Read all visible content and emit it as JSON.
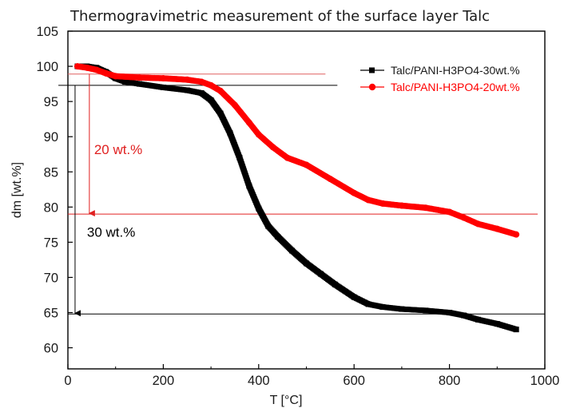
{
  "chart_data": {
    "type": "scatter",
    "title": "Thermogravimetric measurement of the surface layer Talc",
    "xlabel": "T [°C]",
    "ylabel": "dm [wt.%]",
    "xlim": [
      0,
      1000
    ],
    "ylim": [
      57,
      105
    ],
    "xticks": [
      0,
      200,
      400,
      600,
      800,
      1000
    ],
    "yticks": [
      60,
      65,
      70,
      75,
      80,
      85,
      90,
      95,
      100,
      105
    ],
    "grid": false,
    "legend_position": "top-right",
    "series": [
      {
        "name": "Talc/PANI-H3PO4-30wt.%",
        "color": "#000000",
        "marker": "square",
        "x": [
          20,
          40,
          60,
          80,
          100,
          120,
          150,
          200,
          250,
          280,
          300,
          320,
          340,
          360,
          380,
          400,
          420,
          440,
          470,
          500,
          530,
          560,
          600,
          630,
          660,
          700,
          750,
          800,
          830,
          860,
          900,
          940
        ],
        "y": [
          100,
          100,
          99.8,
          99.2,
          98.3,
          97.8,
          97.5,
          97.0,
          96.6,
          96.2,
          95.2,
          93.3,
          90.5,
          87.0,
          83.0,
          79.8,
          77.3,
          75.8,
          73.8,
          72.0,
          70.5,
          69.0,
          67.2,
          66.2,
          65.8,
          65.5,
          65.3,
          65.0,
          64.6,
          64.0,
          63.4,
          62.6
        ]
      },
      {
        "name": "Talc/PANI-H3PO4-20wt.%",
        "color": "#ff0000",
        "marker": "circle",
        "x": [
          20,
          40,
          60,
          80,
          100,
          150,
          200,
          250,
          280,
          300,
          320,
          350,
          380,
          400,
          430,
          460,
          500,
          550,
          600,
          630,
          660,
          700,
          750,
          800,
          830,
          860,
          900,
          940
        ],
        "y": [
          100,
          99.8,
          99.5,
          99.0,
          98.6,
          98.4,
          98.3,
          98.1,
          97.8,
          97.3,
          96.5,
          94.5,
          92.0,
          90.3,
          88.5,
          87.0,
          86.0,
          84.0,
          82.0,
          81.0,
          80.5,
          80.2,
          79.9,
          79.3,
          78.5,
          77.6,
          76.9,
          76.1
        ]
      }
    ],
    "reference_lines": [
      {
        "orientation": "horizontal",
        "y": 98.9,
        "x_start": 0,
        "x_end": 540,
        "color": "#e06060"
      },
      {
        "orientation": "horizontal",
        "y": 97.3,
        "x_start": -20,
        "x_end": 565,
        "color": "#000000"
      },
      {
        "orientation": "horizontal",
        "y": 79.0,
        "x_start": 0,
        "x_end": 985,
        "color": "#e02020"
      },
      {
        "orientation": "horizontal",
        "y": 64.8,
        "x_start": 0,
        "x_end": 1000,
        "color": "#000000"
      }
    ],
    "annotations": [
      {
        "text": "20 wt.%",
        "color": "#e02020",
        "x": 55,
        "y": 87.5,
        "arrow": {
          "x": 45,
          "y_from": 98.9,
          "y_to": 79.0,
          "color": "#e02020"
        }
      },
      {
        "text": "30 wt.%",
        "color": "#000000",
        "x": 40,
        "y": 75.8,
        "arrow": {
          "x": 15,
          "y_from": 97.3,
          "y_to": 64.8,
          "color": "#000000"
        }
      }
    ]
  }
}
